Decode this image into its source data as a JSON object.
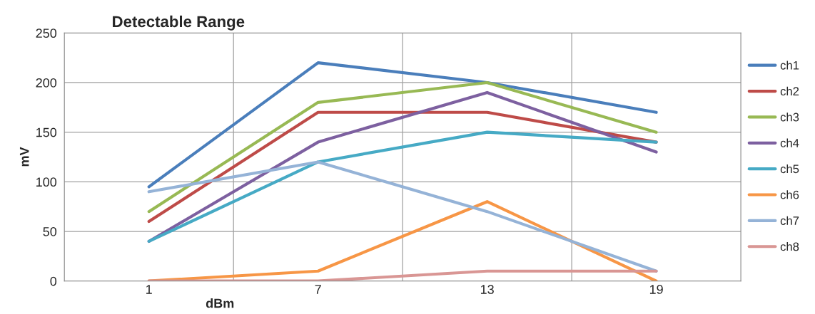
{
  "chart_data": {
    "type": "line",
    "title": "Detectable Range",
    "xlabel": "dBm",
    "ylabel": "mV",
    "categories": [
      "1",
      "7",
      "13",
      "19"
    ],
    "series": [
      {
        "name": "ch1",
        "color": "#4a7ebb",
        "values": [
          95,
          220,
          200,
          170
        ]
      },
      {
        "name": "ch2",
        "color": "#be4b48",
        "values": [
          60,
          170,
          170,
          140
        ]
      },
      {
        "name": "ch3",
        "color": "#98b954",
        "values": [
          70,
          180,
          200,
          150
        ]
      },
      {
        "name": "ch4",
        "color": "#7d60a0",
        "values": [
          40,
          140,
          190,
          130
        ]
      },
      {
        "name": "ch5",
        "color": "#46aac5",
        "values": [
          40,
          120,
          150,
          140
        ]
      },
      {
        "name": "ch6",
        "color": "#f79646",
        "values": [
          0,
          10,
          80,
          0
        ]
      },
      {
        "name": "ch7",
        "color": "#95b3d7",
        "values": [
          90,
          120,
          70,
          10
        ]
      },
      {
        "name": "ch8",
        "color": "#d99694",
        "values": [
          0,
          0,
          10,
          10
        ]
      }
    ],
    "ylim": [
      0,
      250
    ],
    "yticks": [
      0,
      50,
      100,
      150,
      200,
      250
    ],
    "grid": true,
    "legend": "right",
    "marker": "none",
    "line_style": "solid"
  }
}
